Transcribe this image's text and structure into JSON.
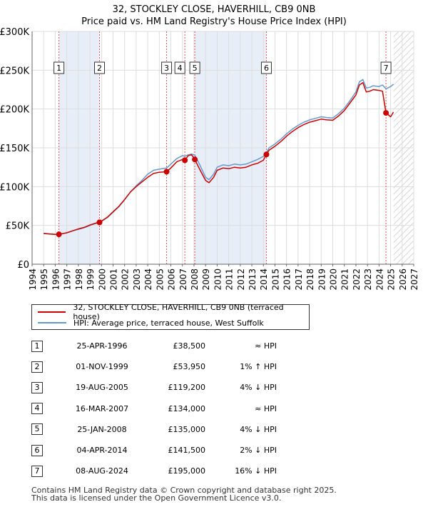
{
  "title_line1": "32, STOCKLEY CLOSE, HAVERHILL, CB9 0NB",
  "title_line2": "Price paid vs. HM Land Registry's House Price Index (HPI)",
  "colors": {
    "price_line": "#cc0000",
    "hpi_line": "#6699cc",
    "shade": "#e8eef8",
    "hatch": "#c8c8c8",
    "marker_line": "#dd5555"
  },
  "legend": {
    "price_label": "32, STOCKLEY CLOSE, HAVERHILL, CB9 0NB (terraced house)",
    "hpi_label": "HPI: Average price, terraced house, West Suffolk"
  },
  "sales": [
    {
      "num": "1",
      "date": "25-APR-1996",
      "price": "£38,500",
      "hpi": "≈ HPI"
    },
    {
      "num": "2",
      "date": "01-NOV-1999",
      "price": "£53,950",
      "hpi": "1% ↑ HPI"
    },
    {
      "num": "3",
      "date": "19-AUG-2005",
      "price": "£119,200",
      "hpi": "4% ↓ HPI"
    },
    {
      "num": "4",
      "date": "16-MAR-2007",
      "price": "£134,000",
      "hpi": "≈ HPI"
    },
    {
      "num": "5",
      "date": "25-JAN-2008",
      "price": "£135,000",
      "hpi": "4% ↓ HPI"
    },
    {
      "num": "6",
      "date": "04-APR-2014",
      "price": "£141,500",
      "hpi": "2% ↓ HPI"
    },
    {
      "num": "7",
      "date": "08-AUG-2024",
      "price": "£195,000",
      "hpi": "16% ↓ HPI"
    }
  ],
  "footer": {
    "line1": "Contains HM Land Registry data © Crown copyright and database right 2025.",
    "line2": "This data is licensed under the Open Government Licence v3.0."
  },
  "chart_data": {
    "type": "line",
    "title": "32, STOCKLEY CLOSE, HAVERHILL, CB9 0NB",
    "subtitle": "Price paid vs. HM Land Registry's House Price Index (HPI)",
    "xlabel": "",
    "ylabel": "",
    "xlim": [
      1994,
      2027
    ],
    "ylim": [
      0,
      300000
    ],
    "y_ticks": [
      0,
      50000,
      100000,
      150000,
      200000,
      250000,
      300000
    ],
    "y_tick_labels": [
      "£0",
      "£50K",
      "£100K",
      "£150K",
      "£200K",
      "£250K",
      "£300K"
    ],
    "x_ticks": [
      1994,
      1995,
      1996,
      1997,
      1998,
      1999,
      2000,
      2001,
      2002,
      2003,
      2004,
      2005,
      2006,
      2007,
      2008,
      2009,
      2010,
      2011,
      2012,
      2013,
      2014,
      2015,
      2016,
      2017,
      2018,
      2019,
      2020,
      2021,
      2022,
      2023,
      2024,
      2025,
      2026,
      2027
    ],
    "grid": true,
    "shaded_ranges": [
      [
        1996.32,
        1999.83
      ],
      [
        2008.07,
        2014.26
      ]
    ],
    "data_end": 2025.25,
    "sale_points": [
      {
        "label": "1",
        "x": 1996.32,
        "y": 38500
      },
      {
        "label": "2",
        "x": 1999.83,
        "y": 53950
      },
      {
        "label": "3",
        "x": 2005.63,
        "y": 119200
      },
      {
        "label": "4",
        "x": 2007.21,
        "y": 134000
      },
      {
        "label": "5",
        "x": 2008.07,
        "y": 135000
      },
      {
        "label": "6",
        "x": 2014.26,
        "y": 141500
      },
      {
        "label": "7",
        "x": 2024.6,
        "y": 195000
      }
    ],
    "series": [
      {
        "name": "HPI: Average price, terraced house, West Suffolk",
        "x": [
          1995.0,
          1995.5,
          1996.0,
          1996.32,
          1997.0,
          1997.5,
          1998.0,
          1998.5,
          1999.0,
          1999.5,
          1999.83,
          2000.5,
          2001.0,
          2001.5,
          2002.0,
          2002.5,
          2003.0,
          2003.5,
          2004.0,
          2004.5,
          2005.0,
          2005.63,
          2006.0,
          2006.5,
          2007.0,
          2007.21,
          2007.5,
          2007.8,
          2008.07,
          2008.5,
          2009.0,
          2009.3,
          2009.7,
          2010.0,
          2010.5,
          2011.0,
          2011.5,
          2012.0,
          2012.5,
          2013.0,
          2013.5,
          2014.0,
          2014.26,
          2014.5,
          2015.0,
          2015.5,
          2016.0,
          2016.5,
          2017.0,
          2017.5,
          2018.0,
          2018.5,
          2019.0,
          2019.5,
          2020.0,
          2020.5,
          2021.0,
          2021.5,
          2022.0,
          2022.3,
          2022.6,
          2022.9,
          2023.2,
          2023.5,
          2024.0,
          2024.3,
          2024.6,
          2025.0,
          2025.25
        ],
        "y": [
          40000,
          39000,
          38500,
          38500,
          40500,
          43000,
          45000,
          47000,
          50000,
          52500,
          53500,
          60000,
          67000,
          74000,
          83000,
          93000,
          101000,
          108000,
          116000,
          121000,
          122500,
          124000,
          129000,
          136000,
          140000,
          139000,
          141000,
          142000,
          140500,
          128000,
          112000,
          109000,
          116000,
          125000,
          128000,
          127000,
          129000,
          128000,
          129000,
          132000,
          135000,
          139000,
          144000,
          150000,
          155000,
          161000,
          168000,
          174000,
          179000,
          183000,
          186000,
          188000,
          190000,
          189000,
          188500,
          194000,
          201000,
          211000,
          222000,
          235000,
          238000,
          227000,
          228000,
          230000,
          229000,
          231000,
          226000,
          229000,
          232000
        ]
      },
      {
        "name": "32, STOCKLEY CLOSE, HAVERHILL, CB9 0NB (terraced house)",
        "x": [
          1995.0,
          1995.5,
          1996.0,
          1996.32,
          1997.0,
          1997.5,
          1998.0,
          1998.5,
          1999.0,
          1999.5,
          1999.83,
          2000.5,
          2001.0,
          2001.5,
          2002.0,
          2002.5,
          2003.0,
          2003.5,
          2004.0,
          2004.5,
          2005.0,
          2005.63,
          2006.0,
          2006.5,
          2007.0,
          2007.21,
          2007.5,
          2007.8,
          2008.07,
          2008.5,
          2009.0,
          2009.3,
          2009.7,
          2010.0,
          2010.5,
          2011.0,
          2011.5,
          2012.0,
          2012.5,
          2013.0,
          2013.5,
          2014.0,
          2014.26,
          2014.5,
          2015.0,
          2015.5,
          2016.0,
          2016.5,
          2017.0,
          2017.5,
          2018.0,
          2018.5,
          2019.0,
          2019.5,
          2020.0,
          2020.5,
          2021.0,
          2021.5,
          2022.0,
          2022.3,
          2022.6,
          2022.9,
          2023.2,
          2023.5,
          2024.0,
          2024.3,
          2024.6,
          2025.0,
          2025.25
        ],
        "y": [
          39500,
          39000,
          38500,
          38500,
          40500,
          43000,
          45500,
          47500,
          50500,
          53000,
          53950,
          60500,
          67500,
          74500,
          83500,
          93000,
          100000,
          106000,
          112000,
          117000,
          118500,
          119200,
          124000,
          132000,
          135000,
          134000,
          140000,
          141000,
          135000,
          122000,
          108000,
          105000,
          112000,
          121000,
          124000,
          123000,
          125000,
          124000,
          125000,
          128000,
          130000,
          134000,
          141500,
          147000,
          152000,
          158000,
          165000,
          171000,
          176000,
          180000,
          183000,
          185000,
          187000,
          186000,
          185500,
          191000,
          198000,
          208000,
          218000,
          231000,
          234000,
          222000,
          223000,
          225000,
          224000,
          223000,
          195000,
          190000,
          196000
        ]
      }
    ]
  }
}
